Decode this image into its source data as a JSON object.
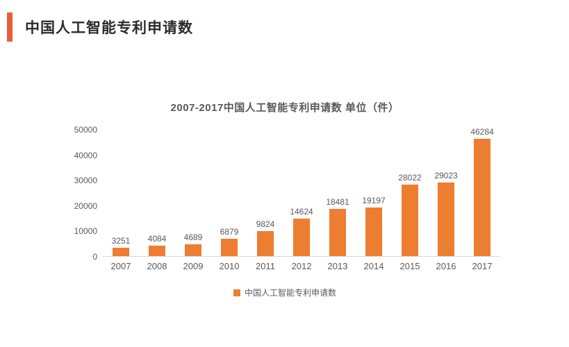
{
  "page": {
    "header": {
      "title": "中国人工智能专利申请数"
    },
    "colors": {
      "bar": "#ED7D31",
      "accent": "#E65F3C",
      "text_dark": "#2B2B2B",
      "text_gray": "#595959",
      "axis_line": "#D9D9D9"
    }
  },
  "chart_data": {
    "type": "bar",
    "title": "2007-2017中国人工智能专利申请数 单位（件）",
    "categories": [
      "2007",
      "2008",
      "2009",
      "2010",
      "2011",
      "2012",
      "2013",
      "2014",
      "2015",
      "2016",
      "2017"
    ],
    "values": [
      3251,
      4084,
      4689,
      6879,
      9824,
      14624,
      18481,
      19197,
      28022,
      29023,
      46284
    ],
    "xlabel": "",
    "ylabel": "",
    "ylim": [
      0,
      50000
    ],
    "yticks": [
      0,
      10000,
      20000,
      30000,
      40000,
      50000
    ],
    "grid": false,
    "data_labels": true,
    "legend_position": "bottom",
    "legend": [
      {
        "label": "中国人工智能专利申请数",
        "color": "#ED7D31"
      }
    ]
  }
}
